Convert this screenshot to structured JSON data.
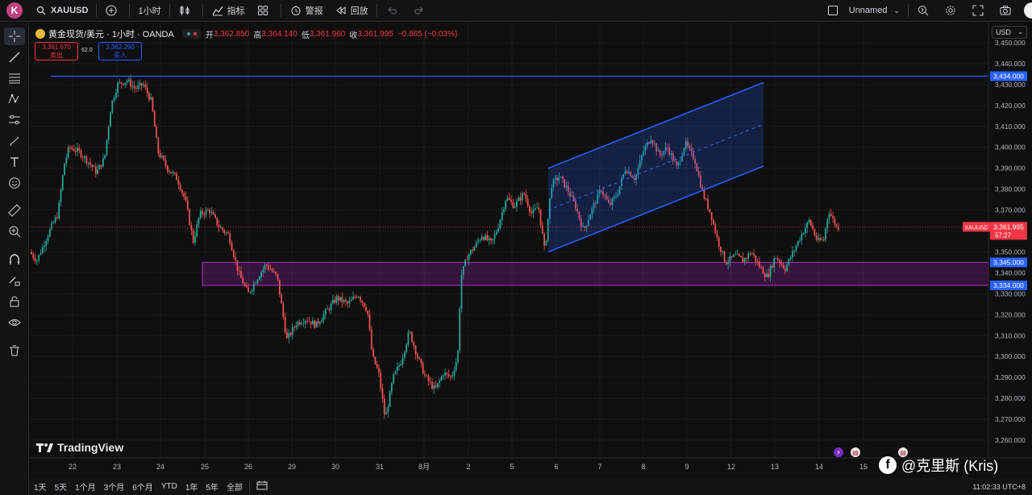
{
  "topbar": {
    "avatar_letter": "K",
    "symbol": "XAUUSD",
    "interval": "1小时",
    "indicators_label": "指标",
    "alert_label": "警报",
    "replay_label": "回放",
    "layout_name": "Unnamed"
  },
  "legend": {
    "title": "黄金现货/美元 · 1小时 · OANDA",
    "open_label": "开",
    "open": "3,362.850",
    "high_label": "高",
    "high": "3,364.140",
    "low_label": "低",
    "low": "3,361.960",
    "close_label": "收",
    "close": "3,361.995",
    "change": "−0.865 (−0.03%)"
  },
  "trade": {
    "sell_price": "3,361.670",
    "sell_label": "卖出",
    "spread": "62.0",
    "buy_price": "3,362.290",
    "buy_label": "买入"
  },
  "currency": "USD",
  "chart_data": {
    "type": "candlestick",
    "y_ticks": [
      "3,450.000",
      "3,440.000",
      "3,430.000",
      "3,420.000",
      "3,410.000",
      "3,400.000",
      "3,390.000",
      "3,380.000",
      "3,370.000",
      "3,360.000",
      "3,350.000",
      "3,340.000",
      "3,330.000",
      "3,320.000",
      "3,310.000",
      "3,300.000",
      "3,290.000",
      "3,280.000",
      "3,270.000",
      "3,260.000"
    ],
    "x_ticks": [
      "22",
      "23",
      "24",
      "25",
      "26",
      "29",
      "30",
      "31",
      "8月",
      "2",
      "5",
      "6",
      "7",
      "8",
      "9",
      "12",
      "13",
      "14",
      "15"
    ],
    "ylim": [
      3256,
      3452
    ],
    "price_labels": {
      "resistance": "3,434.000",
      "zone_top": "3,345.000",
      "zone_bottom": "3,334.000",
      "last_symbol": "XAUUSD",
      "last_price": "3,361.995",
      "countdown": "57:27"
    },
    "annotations": {
      "resistance_line": 3434,
      "support_zone": [
        3334,
        3345
      ],
      "channel": {
        "upper_start_price": 3390,
        "upper_end_price": 3431,
        "lower_start_price": 3350,
        "lower_end_price": 3391
      }
    },
    "colors": {
      "up": "#26a69a",
      "down": "#ef5350",
      "zone": "#9c27b0",
      "line": "#2962ff"
    }
  },
  "branding": {
    "logo": "TradingView"
  },
  "bottom": {
    "timeframes": [
      "1天",
      "5天",
      "1个月",
      "3个月",
      "6个月",
      "YTD",
      "1年",
      "5年",
      "全部"
    ],
    "clock": "11:02:33 UTC+8"
  },
  "watermark": "@克里斯 (Kris)"
}
